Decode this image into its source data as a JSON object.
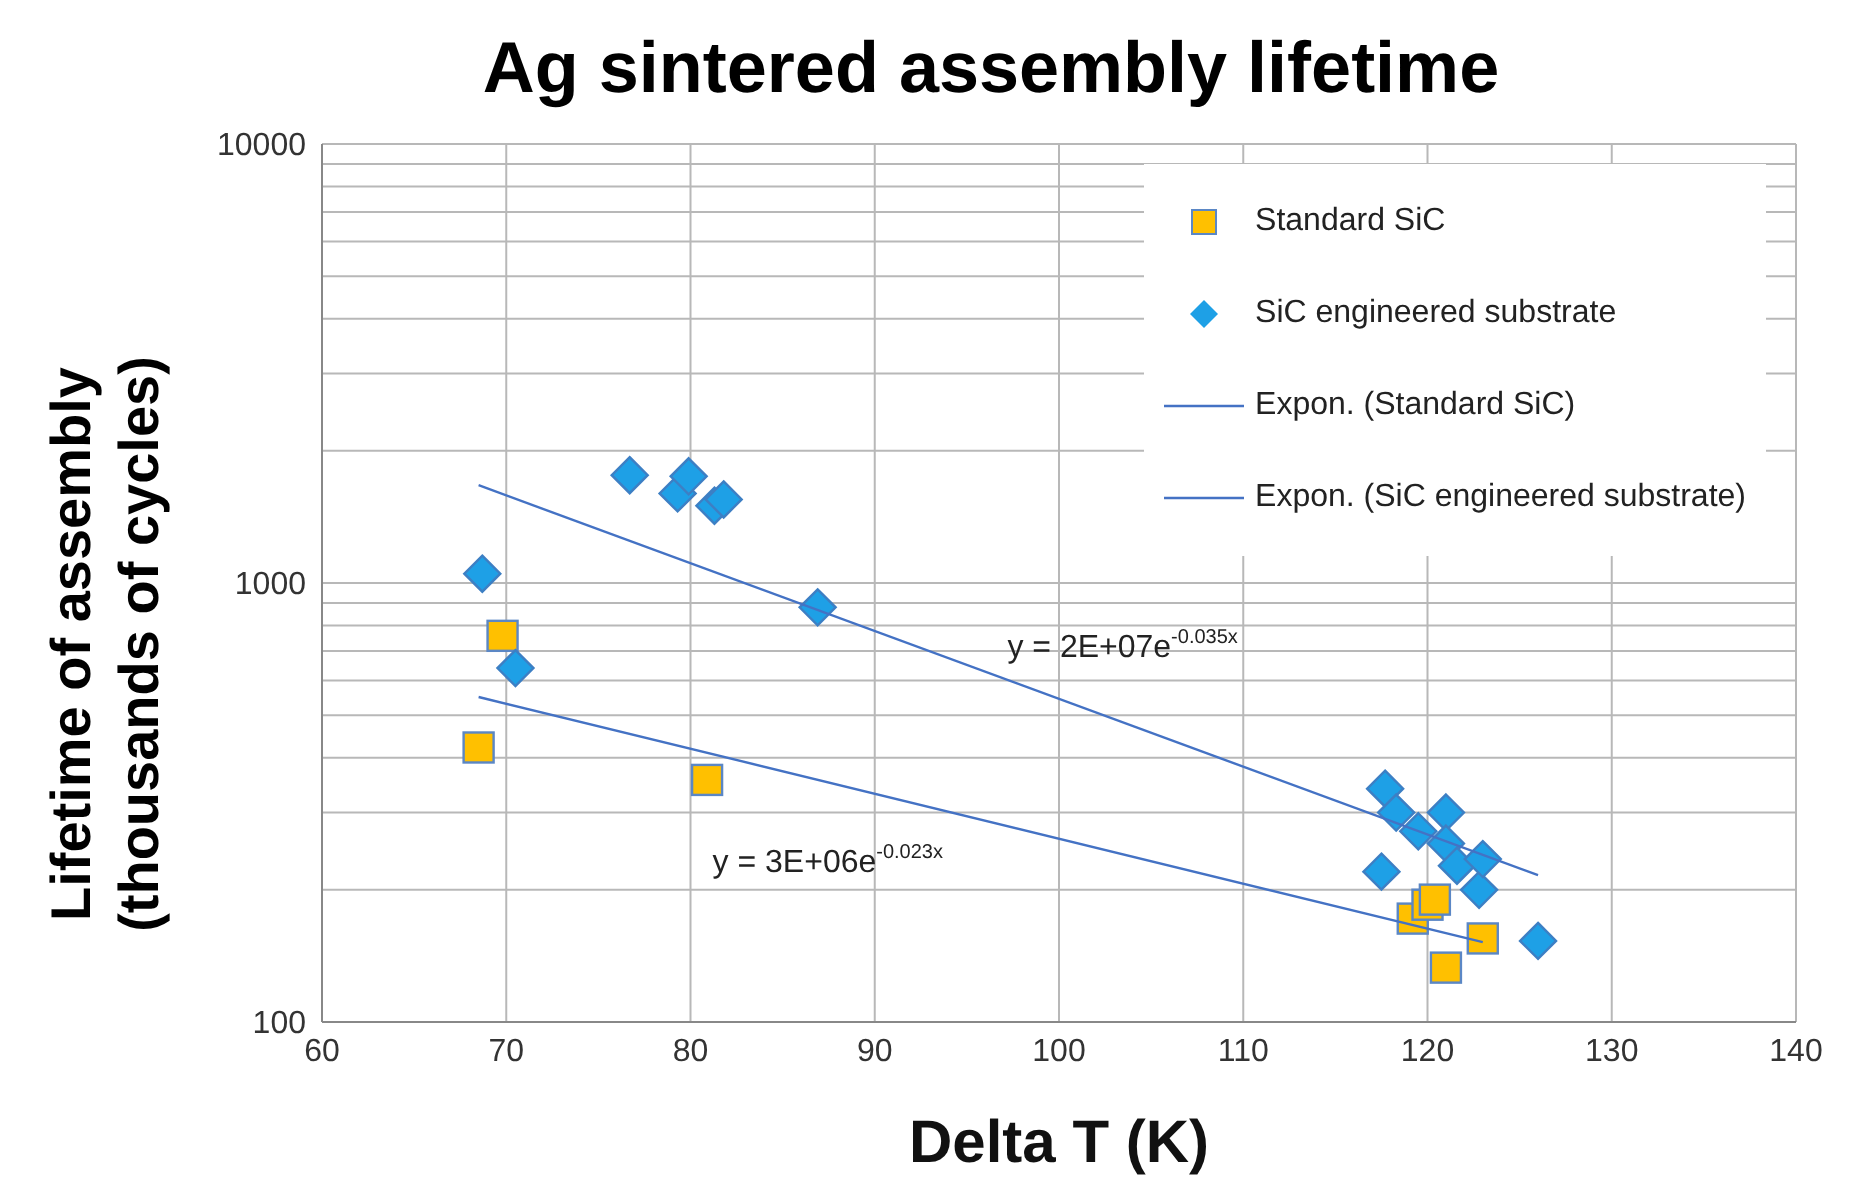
{
  "chart_data": {
    "type": "scatter",
    "title": "Ag sintered assembly lifetime",
    "xlabel": "Delta T (K)",
    "ylabel": "Lifetime of assembly (thousands of cycles)",
    "xlim": [
      60,
      140
    ],
    "xticks": [
      60,
      70,
      80,
      90,
      100,
      110,
      120,
      130,
      140
    ],
    "ylim": [
      100,
      10000
    ],
    "yticks": [
      100,
      1000,
      10000
    ],
    "log": "y",
    "grid": true,
    "legend": "top right",
    "series": [
      {
        "name": "Standard SiC",
        "marker": "square",
        "color": "#ffc000",
        "x": [
          68.5,
          69.8,
          80.9,
          119.2,
          120.0,
          120.4,
          121.0,
          123.0
        ],
        "values": [
          422,
          758,
          356,
          172,
          185,
          190,
          133,
          155
        ]
      },
      {
        "name": "SiC engineered substrate",
        "marker": "diamond",
        "color": "#1ea0e6",
        "x": [
          68.7,
          70.5,
          76.7,
          79.3,
          79.9,
          81.3,
          81.8,
          86.9,
          117.5,
          117.7,
          118.3,
          119.5,
          121.0,
          121.0,
          121.6,
          122.8,
          123.0,
          126.0
        ],
        "values": [
          1050,
          640,
          1760,
          1600,
          1750,
          1500,
          1550,
          880,
          220,
          340,
          300,
          272,
          300,
          255,
          227,
          200,
          235,
          153
        ]
      },
      {
        "name": "Expon. (Standard SiC)",
        "type": "line",
        "marker": "none",
        "color": "#4472c4",
        "x": [
          68.5,
          123.0
        ],
        "values": [
          550,
          152
        ]
      },
      {
        "name": "Expon. (SiC engineered substrate)",
        "type": "line",
        "marker": "none",
        "color": "#4472c4",
        "x": [
          68.5,
          126.0
        ],
        "values": [
          1670,
          216
        ]
      }
    ],
    "annotations": [
      "y = 2E+07e$^{-0.035x}$",
      "y = 3E+06e$^{-0.023x}$"
    ]
  }
}
